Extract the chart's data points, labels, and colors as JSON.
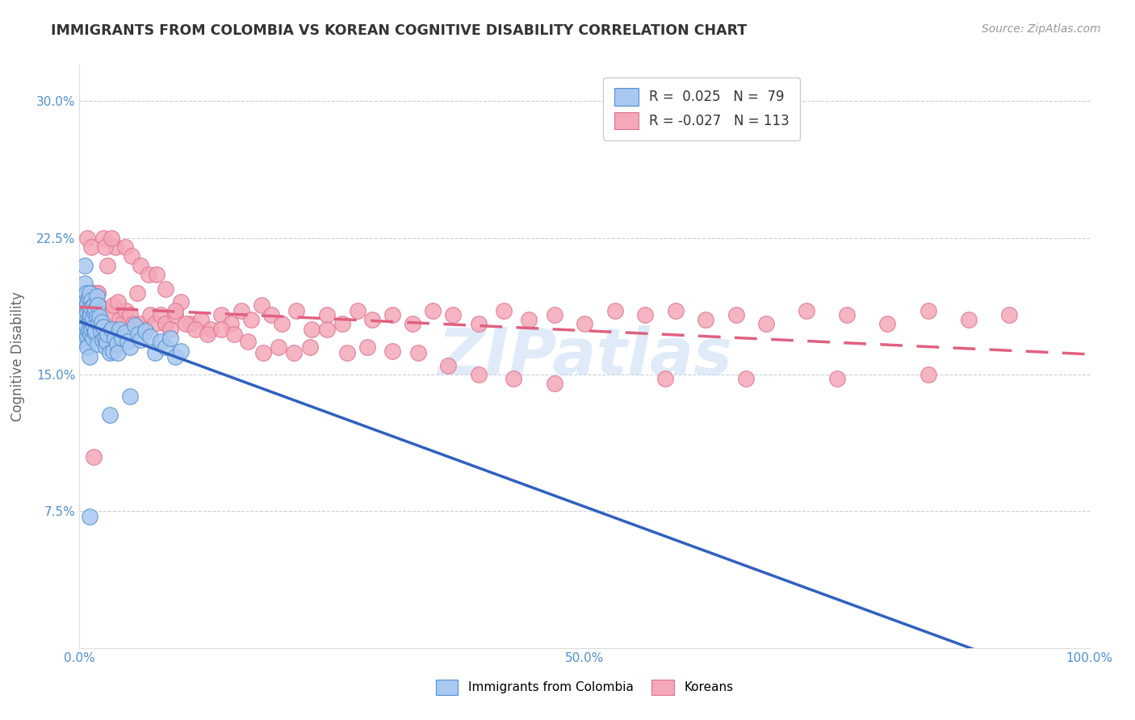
{
  "title": "IMMIGRANTS FROM COLOMBIA VS KOREAN COGNITIVE DISABILITY CORRELATION CHART",
  "source": "Source: ZipAtlas.com",
  "ylabel": "Cognitive Disability",
  "watermark": "ZIPatlas",
  "xlim": [
    0.0,
    1.0
  ],
  "ylim": [
    0.0,
    0.32
  ],
  "yticks": [
    0.075,
    0.15,
    0.225,
    0.3
  ],
  "xticks": [
    0.0,
    0.1,
    0.2,
    0.3,
    0.4,
    0.5,
    0.6,
    0.7,
    0.8,
    0.9,
    1.0
  ],
  "xtick_labels_show": {
    "0.0": "0.0%",
    "0.5": "50.0%",
    "1.0": "100.0%"
  },
  "legend_r1": "R =  0.025",
  "legend_n1": "N =  79",
  "legend_r2": "R = -0.027",
  "legend_n2": "N = 113",
  "color_blue_fill": "#A8C8F0",
  "color_blue_edge": "#5090D0",
  "color_pink_fill": "#F4A8B8",
  "color_pink_edge": "#E07090",
  "color_blue_line": "#3060C0",
  "color_pink_line": "#E06080",
  "color_axis_label": "#5090D0",
  "color_grid": "#C8D0DC",
  "background": "#FFFFFF",
  "colombia_x": [
    0.002,
    0.003,
    0.003,
    0.004,
    0.004,
    0.005,
    0.005,
    0.005,
    0.006,
    0.006,
    0.006,
    0.007,
    0.007,
    0.007,
    0.007,
    0.008,
    0.008,
    0.008,
    0.008,
    0.009,
    0.009,
    0.009,
    0.01,
    0.01,
    0.01,
    0.01,
    0.011,
    0.011,
    0.011,
    0.012,
    0.012,
    0.012,
    0.013,
    0.013,
    0.014,
    0.014,
    0.015,
    0.015,
    0.016,
    0.016,
    0.017,
    0.017,
    0.018,
    0.018,
    0.019,
    0.02,
    0.021,
    0.022,
    0.023,
    0.024,
    0.025,
    0.026,
    0.027,
    0.028,
    0.03,
    0.032,
    0.033,
    0.035,
    0.037,
    0.038,
    0.04,
    0.042,
    0.045,
    0.048,
    0.05,
    0.055,
    0.058,
    0.06,
    0.065,
    0.07,
    0.075,
    0.08,
    0.085,
    0.09,
    0.095,
    0.1,
    0.03,
    0.05,
    0.01
  ],
  "colombia_y": [
    0.175,
    0.18,
    0.17,
    0.185,
    0.172,
    0.2,
    0.178,
    0.21,
    0.168,
    0.183,
    0.19,
    0.187,
    0.173,
    0.195,
    0.177,
    0.171,
    0.184,
    0.189,
    0.165,
    0.181,
    0.192,
    0.174,
    0.186,
    0.179,
    0.16,
    0.195,
    0.18,
    0.172,
    0.183,
    0.191,
    0.175,
    0.187,
    0.17,
    0.181,
    0.188,
    0.176,
    0.173,
    0.184,
    0.186,
    0.174,
    0.193,
    0.182,
    0.167,
    0.188,
    0.178,
    0.182,
    0.174,
    0.179,
    0.169,
    0.176,
    0.17,
    0.165,
    0.168,
    0.172,
    0.162,
    0.175,
    0.163,
    0.17,
    0.167,
    0.162,
    0.175,
    0.17,
    0.173,
    0.168,
    0.165,
    0.177,
    0.172,
    0.169,
    0.174,
    0.171,
    0.162,
    0.168,
    0.165,
    0.17,
    0.16,
    0.163,
    0.128,
    0.138,
    0.072
  ],
  "korean_x": [
    0.003,
    0.004,
    0.005,
    0.006,
    0.007,
    0.008,
    0.009,
    0.01,
    0.011,
    0.012,
    0.013,
    0.014,
    0.015,
    0.016,
    0.017,
    0.018,
    0.02,
    0.022,
    0.024,
    0.026,
    0.028,
    0.03,
    0.033,
    0.036,
    0.04,
    0.043,
    0.046,
    0.05,
    0.053,
    0.057,
    0.06,
    0.065,
    0.07,
    0.075,
    0.08,
    0.085,
    0.09,
    0.095,
    0.1,
    0.11,
    0.12,
    0.13,
    0.14,
    0.15,
    0.16,
    0.17,
    0.18,
    0.19,
    0.2,
    0.215,
    0.23,
    0.245,
    0.26,
    0.275,
    0.29,
    0.31,
    0.33,
    0.35,
    0.37,
    0.395,
    0.42,
    0.445,
    0.47,
    0.5,
    0.53,
    0.56,
    0.59,
    0.62,
    0.65,
    0.68,
    0.72,
    0.76,
    0.8,
    0.84,
    0.88,
    0.92,
    0.008,
    0.012,
    0.018,
    0.025,
    0.032,
    0.038,
    0.045,
    0.052,
    0.06,
    0.068,
    0.076,
    0.085,
    0.095,
    0.105,
    0.115,
    0.127,
    0.14,
    0.153,
    0.167,
    0.182,
    0.197,
    0.212,
    0.228,
    0.245,
    0.265,
    0.285,
    0.31,
    0.335,
    0.365,
    0.395,
    0.43,
    0.47,
    0.58,
    0.66,
    0.75,
    0.84,
    0.014
  ],
  "korean_y": [
    0.185,
    0.178,
    0.182,
    0.188,
    0.175,
    0.192,
    0.183,
    0.177,
    0.19,
    0.185,
    0.195,
    0.192,
    0.188,
    0.175,
    0.183,
    0.195,
    0.18,
    0.187,
    0.225,
    0.175,
    0.21,
    0.183,
    0.188,
    0.22,
    0.18,
    0.178,
    0.185,
    0.183,
    0.178,
    0.195,
    0.178,
    0.175,
    0.183,
    0.178,
    0.183,
    0.178,
    0.175,
    0.183,
    0.19,
    0.178,
    0.18,
    0.175,
    0.183,
    0.178,
    0.185,
    0.18,
    0.188,
    0.183,
    0.178,
    0.185,
    0.175,
    0.183,
    0.178,
    0.185,
    0.18,
    0.183,
    0.178,
    0.185,
    0.183,
    0.178,
    0.185,
    0.18,
    0.183,
    0.178,
    0.185,
    0.183,
    0.185,
    0.18,
    0.183,
    0.178,
    0.185,
    0.183,
    0.178,
    0.185,
    0.18,
    0.183,
    0.225,
    0.22,
    0.195,
    0.22,
    0.225,
    0.19,
    0.22,
    0.215,
    0.21,
    0.205,
    0.205,
    0.197,
    0.185,
    0.178,
    0.175,
    0.172,
    0.175,
    0.172,
    0.168,
    0.162,
    0.165,
    0.162,
    0.165,
    0.175,
    0.162,
    0.165,
    0.163,
    0.162,
    0.155,
    0.15,
    0.148,
    0.145,
    0.148,
    0.148,
    0.148,
    0.15,
    0.105
  ]
}
